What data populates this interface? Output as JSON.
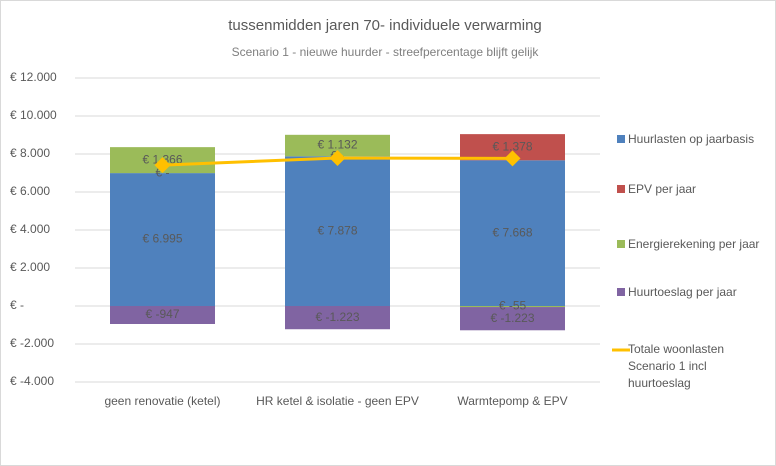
{
  "chart_data": {
    "type": "stacked_bar_line",
    "title": "tussenmidden jaren 70- individuele verwarming",
    "subtitle": "Scenario 1 - nieuwe huurder - streefpercentage blijft gelijk",
    "categories": [
      "geen renovatie (ketel)",
      "HR ketel & isolatie - geen EPV",
      "Warmtepomp & EPV"
    ],
    "series": [
      {
        "name": "Huurlasten op jaarbasis",
        "color": "#4f81bd",
        "values": [
          6995,
          7878,
          7668
        ],
        "value_labels": [
          "€ 6.995",
          "€ 7.878",
          "€ 7.668"
        ]
      },
      {
        "name": "EPV per jaar",
        "color": "#c0504d",
        "values": [
          0,
          0,
          1378
        ],
        "value_labels": [
          "€ -",
          "€ -",
          "€ 1.378"
        ]
      },
      {
        "name": "Energierekening per jaar",
        "color": "#9bbb59",
        "values": [
          1366,
          1132,
          -55
        ],
        "value_labels": [
          "€ 1.366",
          "€ 1.132",
          "€ -55"
        ]
      },
      {
        "name": "Huurtoeslag per jaar",
        "color": "#8064a2",
        "values": [
          -947,
          -1223,
          -1223
        ],
        "value_labels": [
          "€ -947",
          "€ -1.223",
          "€ -1.223"
        ]
      },
      {
        "name": "Totale woonlasten Scenario 1 incl huurtoeslag",
        "color": "#ffc000",
        "kind": "line",
        "values": [
          7414,
          7787,
          7768
        ]
      }
    ],
    "ylim": [
      -4000,
      12000
    ],
    "yticks": [
      {
        "value": -4000,
        "label": "€ -4.000"
      },
      {
        "value": -2000,
        "label": "€ -2.000"
      },
      {
        "value": 0,
        "label": "€ -"
      },
      {
        "value": 2000,
        "label": "€ 2.000"
      },
      {
        "value": 4000,
        "label": "€ 4.000"
      },
      {
        "value": 6000,
        "label": "€ 6.000"
      },
      {
        "value": 8000,
        "label": "€ 8.000"
      },
      {
        "value": 10000,
        "label": "€ 10.000"
      },
      {
        "value": 12000,
        "label": "€ 12.000"
      }
    ],
    "grid": true,
    "legend": "right"
  }
}
